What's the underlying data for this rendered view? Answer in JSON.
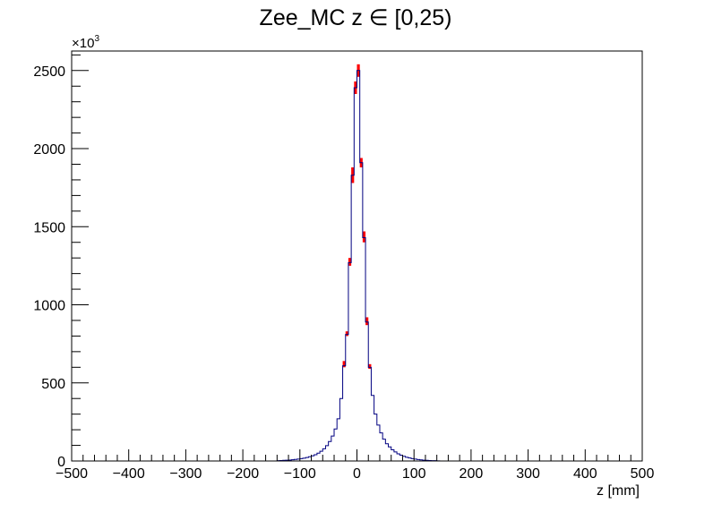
{
  "chart_data": {
    "type": "histogram",
    "title": "Zee_MC z ∈ [0,25)",
    "xlabel": "z [mm]",
    "ylabel": "",
    "y_multiplier_label": "×10",
    "y_multiplier_exponent": "3",
    "xlim": [
      -500,
      500
    ],
    "ylim": [
      0,
      2625
    ],
    "x_ticks": [
      -500,
      -400,
      -300,
      -200,
      -100,
      0,
      100,
      200,
      300,
      400,
      500
    ],
    "x_tick_labels": [
      "−500",
      "−400",
      "−300",
      "−200",
      "−100",
      "0",
      "100",
      "200",
      "300",
      "400",
      "500"
    ],
    "y_ticks": [
      0,
      500,
      1000,
      1500,
      2000,
      2500
    ],
    "y_tick_labels": [
      "0",
      "500",
      "1000",
      "1500",
      "2000",
      "2500"
    ],
    "bin_width": 5,
    "grid": false,
    "series": [
      {
        "color": "#000080",
        "style": "step",
        "x_start": [
          -140,
          -135,
          -130,
          -125,
          -120,
          -115,
          -110,
          -105,
          -100,
          -95,
          -90,
          -85,
          -80,
          -75,
          -70,
          -65,
          -60,
          -55,
          -50,
          -45,
          -40,
          -35,
          -30,
          -25,
          -20,
          -15,
          -10,
          -5,
          0,
          5,
          10,
          15,
          20,
          25,
          30,
          35,
          40,
          45,
          50,
          55,
          60,
          65,
          70,
          75,
          80,
          85,
          90,
          95,
          100,
          105,
          110,
          115,
          120,
          125,
          130,
          135,
          140
        ],
        "values": [
          2,
          3,
          4,
          5,
          6,
          8,
          10,
          12,
          15,
          18,
          22,
          27,
          33,
          40,
          50,
          62,
          78,
          98,
          125,
          160,
          205,
          270,
          400,
          610,
          810,
          1270,
          1830,
          2390,
          2500,
          1910,
          1430,
          890,
          600,
          420,
          300,
          230,
          180,
          140,
          110,
          90,
          72,
          58,
          46,
          37,
          30,
          24,
          19,
          15,
          12,
          9,
          7,
          5,
          4,
          3,
          2,
          2,
          1
        ]
      },
      {
        "color": "#ff0000",
        "style": "band",
        "x_start": [
          -25,
          -20,
          -15,
          -10,
          -5,
          0,
          5,
          10,
          15,
          20
        ],
        "low": [
          600,
          800,
          1250,
          1780,
          2350,
          2460,
          1880,
          1400,
          870,
          590
        ],
        "high": [
          640,
          830,
          1300,
          1880,
          2430,
          2540,
          1940,
          1470,
          920,
          620
        ]
      }
    ]
  }
}
